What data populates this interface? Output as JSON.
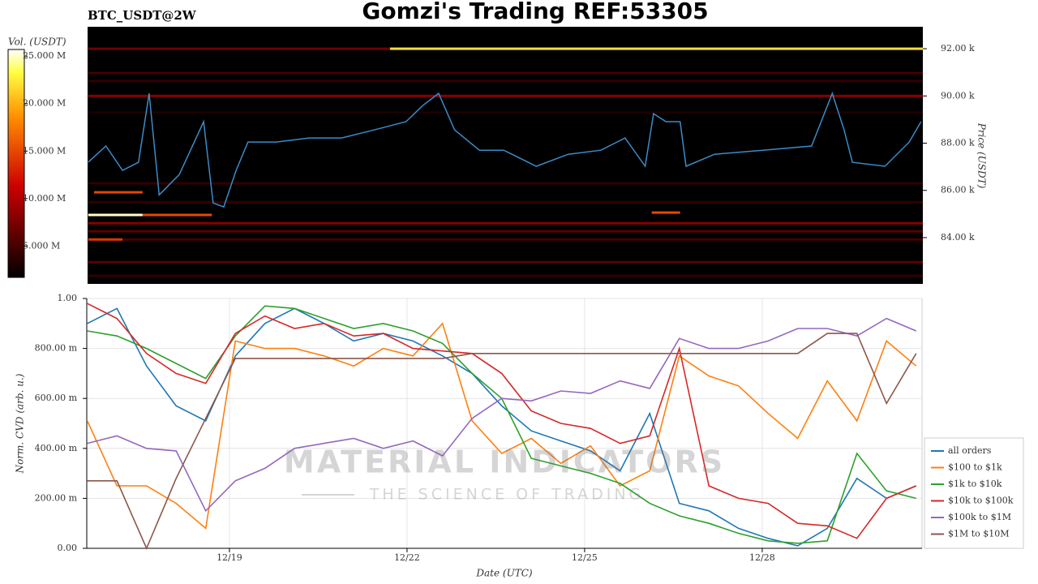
{
  "chart_data": [
    {
      "type": "heatmap",
      "title": "Gomzi's Trading REF:53305",
      "subtitle": "BTC_USDT@2W",
      "colorbar_label": "Vol. (USDT)",
      "colorbar_lim": [
        1.7,
        25.7
      ],
      "colorbar_ticks": [
        {
          "value": 5,
          "label": "5.000 M"
        },
        {
          "value": 10,
          "label": "10.000 M"
        },
        {
          "value": 15,
          "label": "15.000 M"
        },
        {
          "value": 20,
          "label": "20.000 M"
        },
        {
          "value": 25,
          "label": "25.000 M"
        }
      ],
      "y_label": "Price (USDT)",
      "ylim": [
        82.04,
        92.93
      ],
      "yticks": [
        {
          "value": 84,
          "label": "84.00 k"
        },
        {
          "value": 86,
          "label": "86.00 k"
        },
        {
          "value": 88,
          "label": "88.00 k"
        },
        {
          "value": 90,
          "label": "90.00 k"
        },
        {
          "value": 92,
          "label": "92.00 k"
        }
      ],
      "xlim": [
        16.59,
        30.7
      ],
      "levels": [
        {
          "price": 92.0,
          "x": [
            16.6,
            21.7
          ],
          "volume": 7
        },
        {
          "price": 92.0,
          "x": [
            21.7,
            30.7
          ],
          "volume": 22
        },
        {
          "price": 90.97,
          "x": [
            16.6,
            30.7
          ],
          "volume": 5
        },
        {
          "price": 90.63,
          "x": [
            16.6,
            30.7
          ],
          "volume": 4
        },
        {
          "price": 90.0,
          "x": [
            16.6,
            30.7
          ],
          "volume": 8
        },
        {
          "price": 85.92,
          "x": [
            16.7,
            17.52
          ],
          "volume": 15
        },
        {
          "price": 84.96,
          "x": [
            16.6,
            17.52
          ],
          "volume": 25
        },
        {
          "price": 84.96,
          "x": [
            17.52,
            18.69
          ],
          "volume": 15
        },
        {
          "price": 85.06,
          "x": [
            26.12,
            26.6
          ],
          "volume": 15
        },
        {
          "price": 84.61,
          "x": [
            16.6,
            30.7
          ],
          "volume": 8
        },
        {
          "price": 84.27,
          "x": [
            16.6,
            30.7
          ],
          "volume": 6
        },
        {
          "price": 83.92,
          "x": [
            16.6,
            17.18
          ],
          "volume": 14
        },
        {
          "price": 83.92,
          "x": [
            17.18,
            30.7
          ],
          "volume": 5
        },
        {
          "price": 82.96,
          "x": [
            16.6,
            30.7
          ],
          "volume": 6
        },
        {
          "price": 82.38,
          "x": [
            16.6,
            30.7
          ],
          "volume": 4
        },
        {
          "price": 86.3,
          "x": [
            16.6,
            30.7
          ],
          "volume": 4
        },
        {
          "price": 85.5,
          "x": [
            16.6,
            30.7
          ],
          "volume": 4
        },
        {
          "price": 89.3,
          "x": [
            16.6,
            30.7
          ],
          "volume": 3
        }
      ],
      "series": [
        {
          "color": "#3a8cc8",
          "x": [
            16.6,
            16.9,
            17.18,
            17.45,
            17.63,
            17.8,
            18.14,
            18.55,
            18.71,
            18.89,
            19.1,
            19.3,
            19.78,
            20.33,
            20.88,
            21.43,
            21.97,
            22.25,
            22.52,
            22.79,
            23.21,
            23.62,
            24.17,
            24.71,
            25.26,
            25.67,
            26.01,
            26.15,
            26.36,
            26.6,
            26.7,
            27.18,
            28.0,
            28.82,
            29.17,
            29.37,
            29.51,
            30.06,
            30.47,
            30.67
          ],
          "values": [
            87.19,
            87.88,
            86.85,
            87.19,
            90.11,
            85.81,
            86.67,
            88.91,
            85.47,
            85.3,
            86.85,
            88.05,
            88.05,
            88.22,
            88.22,
            88.56,
            88.91,
            89.59,
            90.11,
            88.56,
            87.7,
            87.7,
            87.02,
            87.53,
            87.7,
            88.22,
            87.02,
            89.25,
            88.91,
            88.91,
            87.02,
            87.53,
            87.7,
            87.88,
            90.11,
            88.56,
            87.19,
            87.02,
            88.05,
            88.91
          ]
        }
      ]
    },
    {
      "type": "line",
      "y_label": "Norm. CVD (arb. u.)",
      "x_label": "Date (UTC)",
      "xlim": [
        16.59,
        30.7
      ],
      "xticks": [
        {
          "value": 19,
          "label": "12/19"
        },
        {
          "value": 22,
          "label": "12/22"
        },
        {
          "value": 25,
          "label": "12/25"
        },
        {
          "value": 28,
          "label": "12/28"
        }
      ],
      "ylim": [
        0,
        1
      ],
      "yticks": [
        {
          "value": 0,
          "label": "0.00"
        },
        {
          "value": 0.2,
          "label": "200.00 m"
        },
        {
          "value": 0.4,
          "label": "400.00 m"
        },
        {
          "value": 0.6,
          "label": "600.00 m"
        },
        {
          "value": 0.8,
          "label": "800.00 m"
        },
        {
          "value": 1,
          "label": "1.00"
        }
      ],
      "grid": true,
      "legend": "lower right outside",
      "x": [
        16.6,
        17.1,
        17.6,
        18.1,
        18.6,
        19.1,
        19.6,
        20.1,
        20.6,
        21.1,
        21.6,
        22.1,
        22.6,
        23.1,
        23.6,
        24.1,
        24.6,
        25.1,
        25.6,
        26.1,
        26.6,
        27.1,
        27.6,
        28.1,
        28.6,
        29.1,
        29.6,
        30.1,
        30.6
      ],
      "series": [
        {
          "name": "all orders",
          "color": "#1f77b4",
          "values": [
            0.9,
            0.96,
            0.73,
            0.57,
            0.51,
            0.77,
            0.9,
            0.96,
            0.9,
            0.83,
            0.86,
            0.83,
            0.77,
            0.7,
            0.57,
            0.47,
            0.43,
            0.39,
            0.31,
            0.54,
            0.18,
            0.15,
            0.08,
            0.04,
            0.01,
            0.08,
            0.28,
            0.2,
            0.25
          ]
        },
        {
          "name": "$100 to $1k",
          "color": "#ff7f0e",
          "values": [
            0.51,
            0.25,
            0.25,
            0.18,
            0.08,
            0.83,
            0.8,
            0.8,
            0.77,
            0.73,
            0.8,
            0.77,
            0.9,
            0.51,
            0.38,
            0.44,
            0.34,
            0.41,
            0.25,
            0.31,
            0.77,
            0.69,
            0.65,
            0.54,
            0.44,
            0.67,
            0.51,
            0.83,
            0.73
          ]
        },
        {
          "name": "$1k to $10k",
          "color": "#2ca02c",
          "values": [
            0.87,
            0.85,
            0.8,
            0.74,
            0.68,
            0.85,
            0.97,
            0.96,
            0.92,
            0.88,
            0.9,
            0.87,
            0.82,
            0.7,
            0.6,
            0.36,
            0.33,
            0.3,
            0.26,
            0.18,
            0.13,
            0.1,
            0.06,
            0.03,
            0.02,
            0.03,
            0.38,
            0.23,
            0.2
          ]
        },
        {
          "name": "$10k to $100k",
          "color": "#d62728",
          "values": [
            0.98,
            0.92,
            0.78,
            0.7,
            0.66,
            0.86,
            0.93,
            0.88,
            0.9,
            0.85,
            0.86,
            0.8,
            0.79,
            0.78,
            0.7,
            0.55,
            0.5,
            0.48,
            0.42,
            0.45,
            0.8,
            0.25,
            0.2,
            0.18,
            0.1,
            0.09,
            0.04,
            0.2,
            0.25
          ]
        },
        {
          "name": "$100k to $1M",
          "color": "#9467bd",
          "values": [
            0.42,
            0.45,
            0.4,
            0.39,
            0.15,
            0.27,
            0.32,
            0.4,
            0.42,
            0.44,
            0.4,
            0.43,
            0.37,
            0.52,
            0.6,
            0.59,
            0.63,
            0.62,
            0.67,
            0.64,
            0.84,
            0.8,
            0.8,
            0.83,
            0.88,
            0.88,
            0.85,
            0.92,
            0.87
          ]
        },
        {
          "name": "$1M to $10M",
          "color": "#8c564b",
          "values": [
            0.27,
            0.27,
            0,
            0.28,
            0.52,
            0.76,
            0.76,
            0.76,
            0.76,
            0.76,
            0.76,
            0.76,
            0.76,
            0.78,
            0.78,
            0.78,
            0.78,
            0.78,
            0.78,
            0.78,
            0.78,
            0.78,
            0.78,
            0.78,
            0.78,
            0.86,
            0.86,
            0.58,
            0.78
          ]
        }
      ]
    }
  ],
  "watermark": {
    "title": "MATERIAL INDICATORS",
    "subtitle": "THE SCIENCE OF TRADING"
  }
}
